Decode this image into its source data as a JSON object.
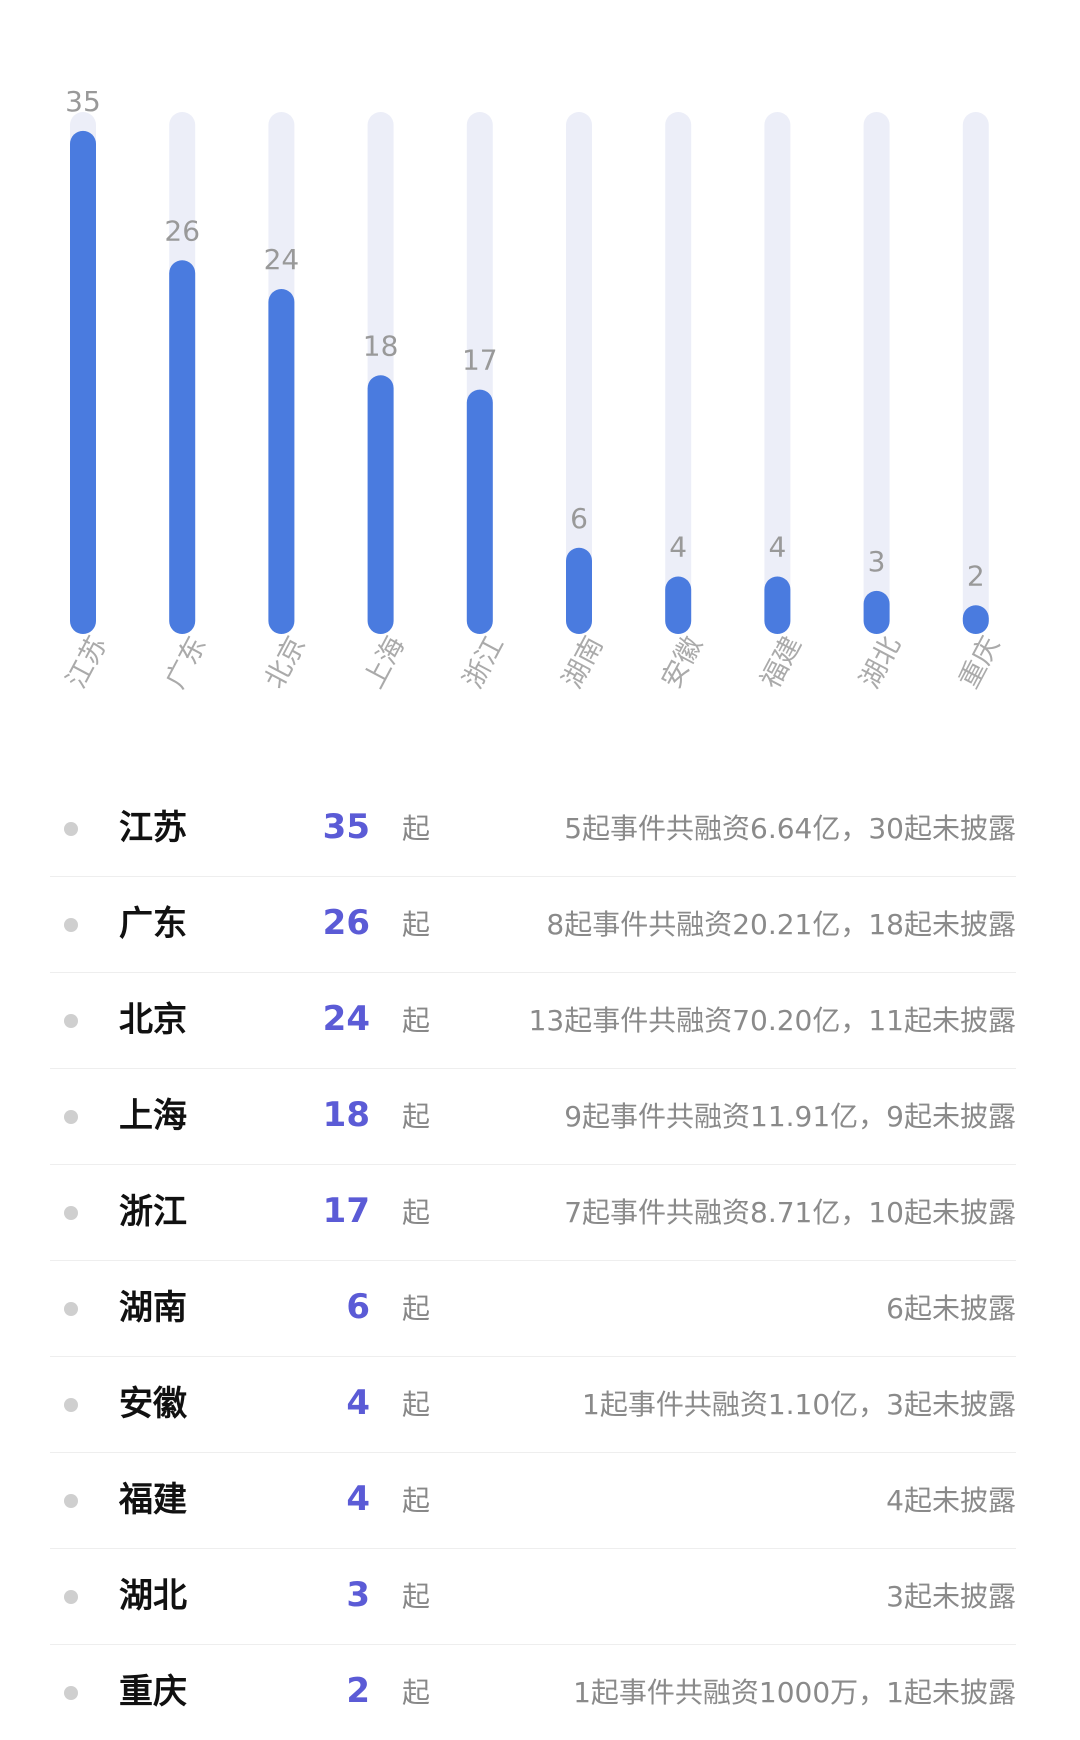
{
  "chart_data": {
    "type": "bar",
    "categories": [
      "江苏",
      "广东",
      "北京",
      "上海",
      "浙江",
      "湖南",
      "安徽",
      "福建",
      "湖北",
      "重庆"
    ],
    "values": [
      35,
      26,
      24,
      18,
      17,
      6,
      4,
      4,
      3,
      2
    ],
    "ylim": [
      0,
      40
    ],
    "colors": {
      "bar": "#4a7bdf",
      "track": "#eceef8",
      "label": "#999999",
      "tick": "#aaaaaa"
    }
  },
  "rows": [
    {
      "name": "江苏",
      "count": "35",
      "unit": "起",
      "desc": "5起事件共融资6.64亿，30起未披露"
    },
    {
      "name": "广东",
      "count": "26",
      "unit": "起",
      "desc": "8起事件共融资20.21亿，18起未披露"
    },
    {
      "name": "北京",
      "count": "24",
      "unit": "起",
      "desc": "13起事件共融资70.20亿，11起未披露"
    },
    {
      "name": "上海",
      "count": "18",
      "unit": "起",
      "desc": "9起事件共融资11.91亿，9起未披露"
    },
    {
      "name": "浙江",
      "count": "17",
      "unit": "起",
      "desc": "7起事件共融资8.71亿，10起未披露"
    },
    {
      "name": "湖南",
      "count": "6",
      "unit": "起",
      "desc": "6起未披露"
    },
    {
      "name": "安徽",
      "count": "4",
      "unit": "起",
      "desc": "1起事件共融资1.10亿，3起未披露"
    },
    {
      "name": "福建",
      "count": "4",
      "unit": "起",
      "desc": "4起未披露"
    },
    {
      "name": "湖北",
      "count": "3",
      "unit": "起",
      "desc": "3起未披露"
    },
    {
      "name": "重庆",
      "count": "2",
      "unit": "起",
      "desc": "1起事件共融资1000万，1起未披露"
    }
  ]
}
